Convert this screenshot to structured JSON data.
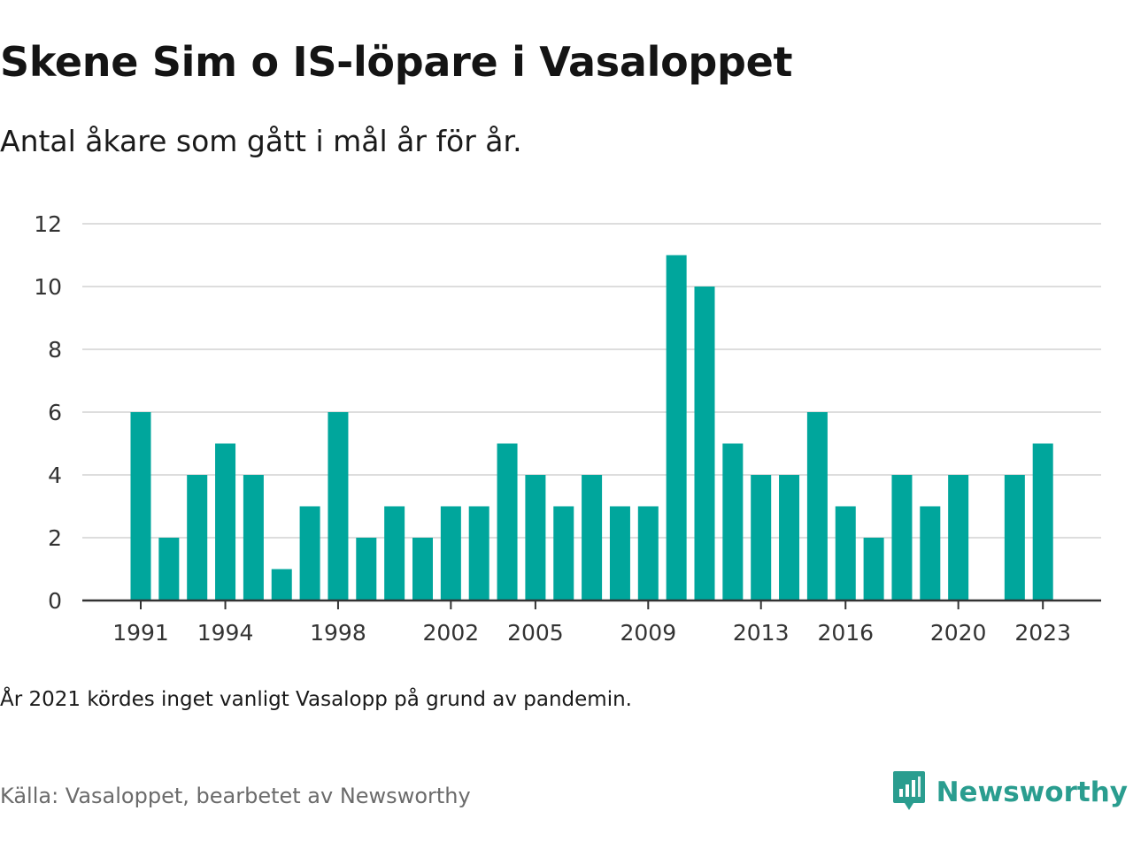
{
  "title": "Skene Sim o IS-löpare i Vasaloppet",
  "subtitle": "Antal åkare som gått i mål år för år.",
  "note": "År 2021 kördes inget vanligt Vasalopp på grund av pandemin.",
  "source": "Källa: Vasaloppet, bearbetet av Newsworthy",
  "brand": {
    "name": "Newsworthy",
    "icon": "newsworthy-logo-icon",
    "color": "#2a9d8f"
  },
  "colors": {
    "bar": "#00a69c",
    "grid": "#dddddd",
    "axis": "#333333"
  },
  "chart_data": {
    "type": "bar",
    "categories": [
      "1991",
      "1992",
      "1993",
      "1994",
      "1995",
      "1996",
      "1997",
      "1998",
      "1999",
      "2000",
      "2001",
      "2002",
      "2003",
      "2004",
      "2005",
      "2006",
      "2007",
      "2008",
      "2009",
      "2010",
      "2011",
      "2012",
      "2013",
      "2014",
      "2015",
      "2016",
      "2017",
      "2018",
      "2019",
      "2020",
      "2021",
      "2022",
      "2023"
    ],
    "values": [
      6,
      2,
      4,
      5,
      4,
      1,
      3,
      6,
      2,
      3,
      2,
      3,
      3,
      5,
      4,
      3,
      4,
      3,
      3,
      11,
      10,
      5,
      4,
      4,
      6,
      3,
      2,
      4,
      3,
      4,
      null,
      4,
      5
    ],
    "x_tick_labels": [
      "1991",
      "1994",
      "1998",
      "2002",
      "2005",
      "2009",
      "2013",
      "2016",
      "2020",
      "2023"
    ],
    "y_ticks": [
      "0",
      "2",
      "4",
      "6",
      "8",
      "10",
      "12"
    ],
    "ylim": [
      0,
      12
    ],
    "grid": true,
    "xlabel": "",
    "ylabel": ""
  }
}
